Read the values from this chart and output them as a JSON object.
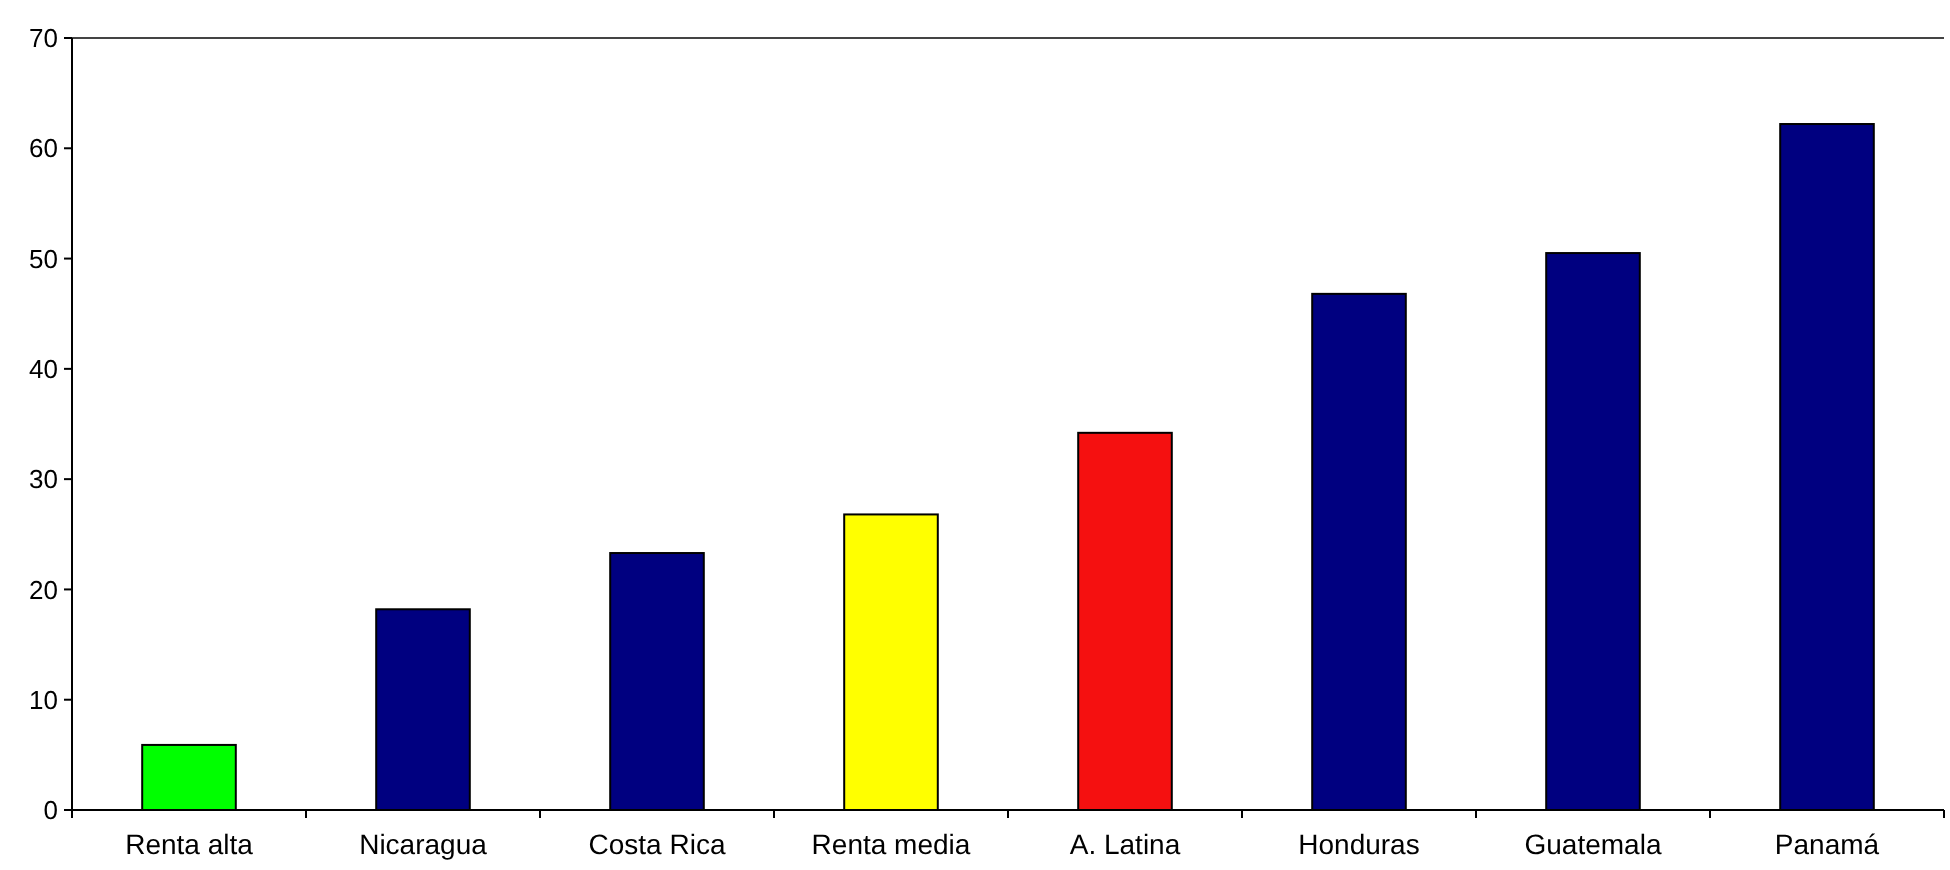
{
  "chart_data": {
    "type": "bar",
    "categories": [
      "Renta alta",
      "Nicaragua",
      "Costa Rica",
      "Renta media",
      "A. Latina",
      "Honduras",
      "Guatemala",
      "Panamá"
    ],
    "values": [
      5.9,
      18.2,
      23.3,
      26.8,
      34.2,
      46.8,
      50.5,
      62.2
    ],
    "colors": [
      "#00ff00",
      "#000080",
      "#000080",
      "#ffff00",
      "#f51010",
      "#000080",
      "#000080",
      "#000080"
    ],
    "ylim": [
      0,
      70
    ],
    "yticks": [
      0,
      10,
      20,
      30,
      40,
      50,
      60,
      70
    ],
    "grid": false
  }
}
